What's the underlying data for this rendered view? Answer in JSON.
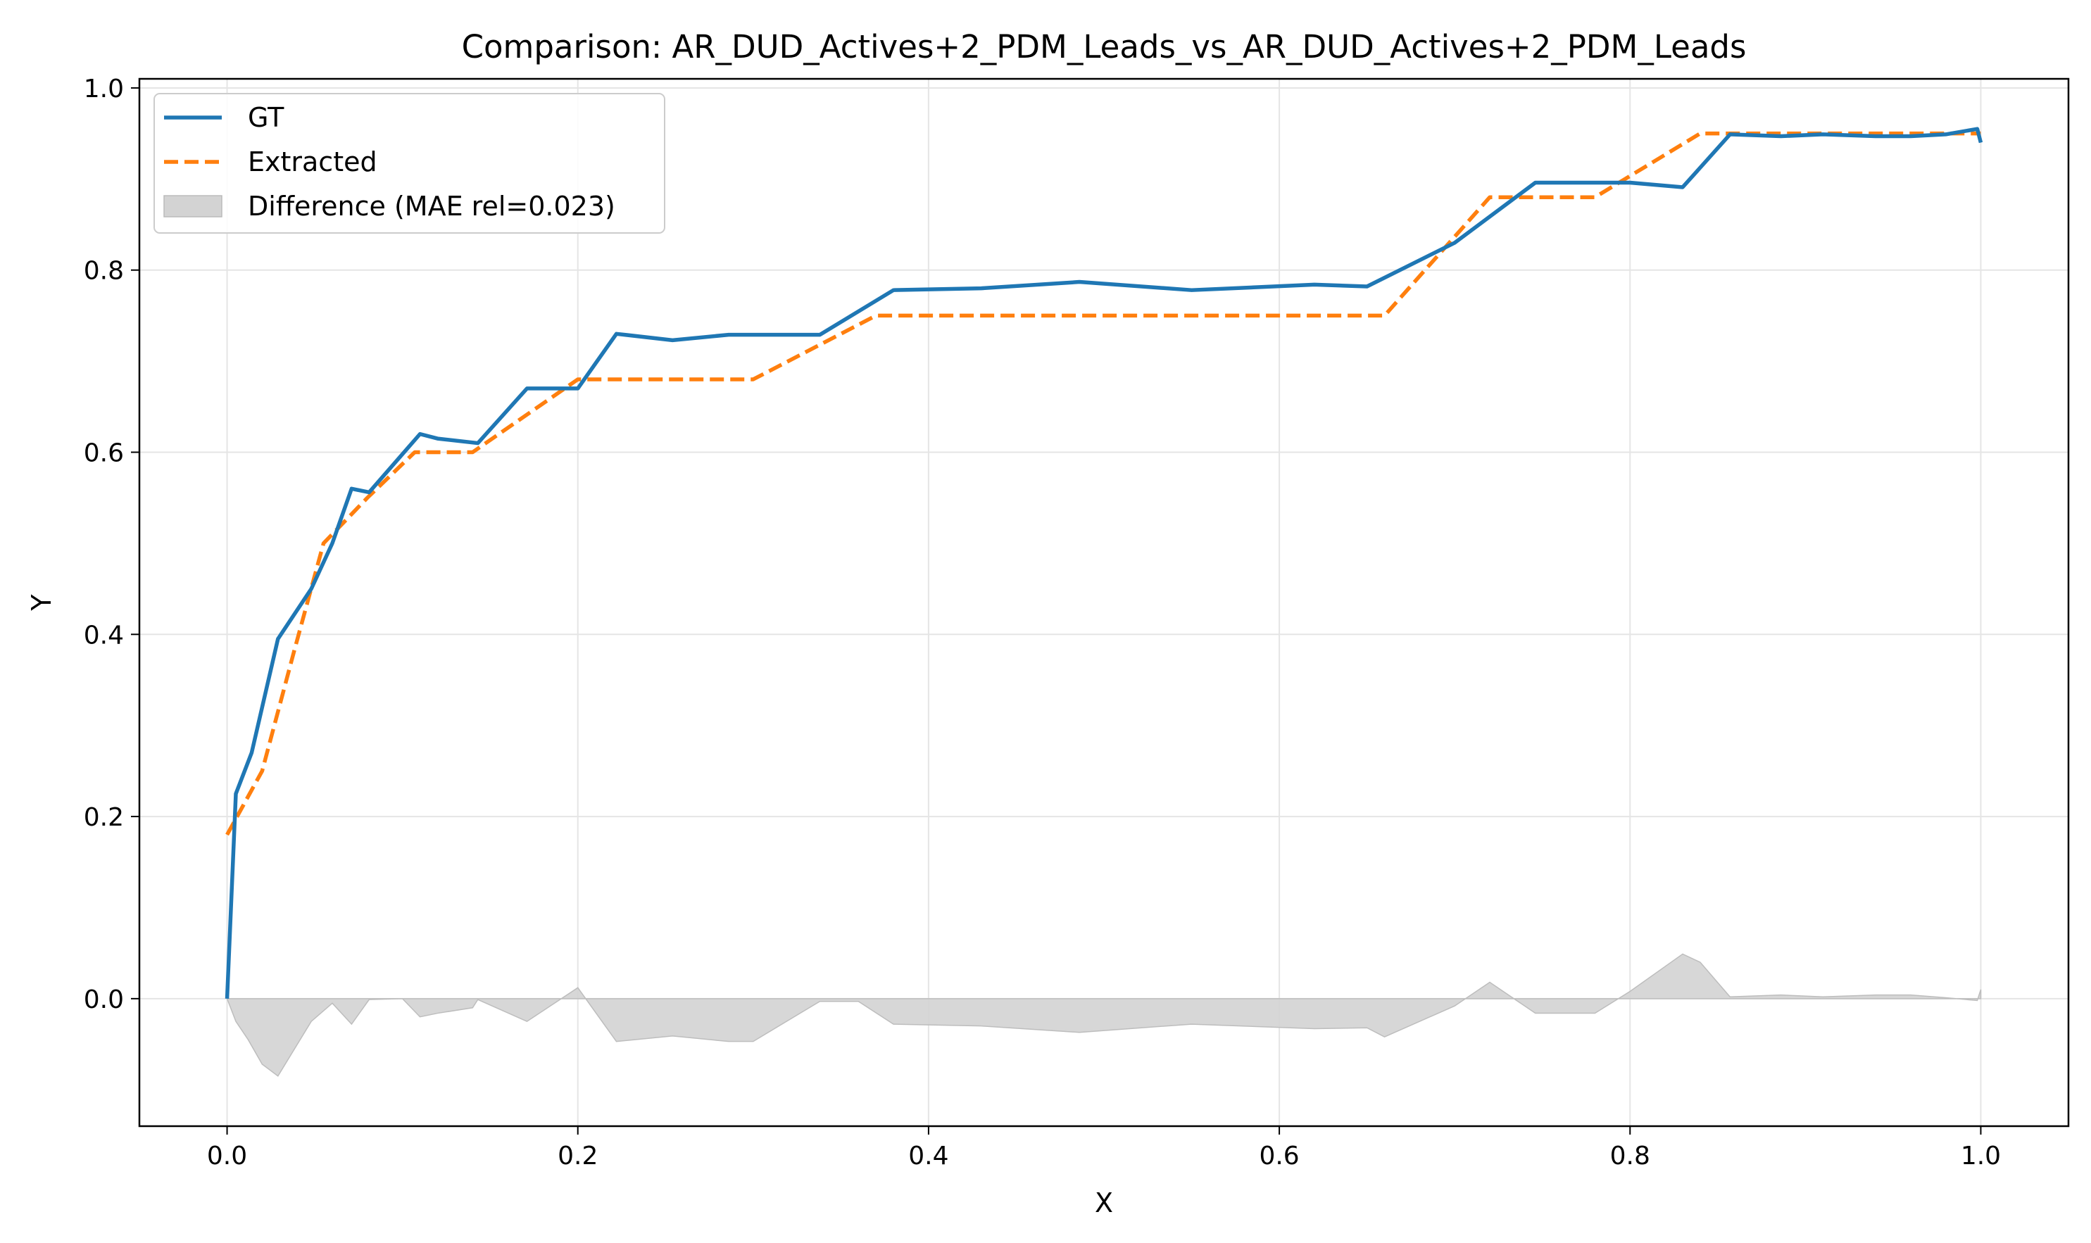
{
  "chart_data": {
    "type": "line",
    "title": "Comparison: AR_DUD_Actives+2_PDM_Leads_vs_AR_DUD_Actives+2_PDM_Leads",
    "xlabel": "X",
    "ylabel": "Y",
    "xlim": [
      -0.05,
      1.05
    ],
    "ylim": [
      -0.14,
      1.01
    ],
    "x_ticks": [
      0.0,
      0.2,
      0.4,
      0.6,
      0.8,
      1.0
    ],
    "x_tick_labels": [
      "0.0",
      "0.2",
      "0.4",
      "0.6",
      "0.8",
      "1.0"
    ],
    "y_ticks": [
      0.0,
      0.2,
      0.4,
      0.6,
      0.8,
      1.0
    ],
    "y_tick_labels": [
      "0.0",
      "0.2",
      "0.4",
      "0.6",
      "0.8",
      "1.0"
    ],
    "grid": true,
    "legend": {
      "placement": "top-left"
    },
    "colors": {
      "gt": "#1f77b4",
      "extracted": "#ff7f0e",
      "difference": "#d3d3d3"
    },
    "series": [
      {
        "name": "GT",
        "style": "solid",
        "x": [
          0.0,
          0.005,
          0.014,
          0.029,
          0.048,
          0.06,
          0.071,
          0.081,
          0.11,
          0.12,
          0.143,
          0.171,
          0.2,
          0.222,
          0.254,
          0.286,
          0.3,
          0.338,
          0.38,
          0.43,
          0.486,
          0.55,
          0.62,
          0.65,
          0.7,
          0.746,
          0.78,
          0.8,
          0.83,
          0.857,
          0.886,
          0.91,
          0.94,
          0.96,
          0.98,
          0.998,
          1.0
        ],
        "y": [
          0.0,
          0.225,
          0.27,
          0.395,
          0.45,
          0.5,
          0.56,
          0.556,
          0.62,
          0.615,
          0.61,
          0.67,
          0.67,
          0.73,
          0.723,
          0.729,
          0.729,
          0.729,
          0.778,
          0.78,
          0.787,
          0.778,
          0.784,
          0.782,
          0.83,
          0.896,
          0.896,
          0.896,
          0.891,
          0.949,
          0.947,
          0.949,
          0.947,
          0.947,
          0.949,
          0.955,
          0.94
        ]
      },
      {
        "name": "Extracted",
        "style": "dashed",
        "x": [
          0.0,
          0.02,
          0.038,
          0.055,
          0.08,
          0.107,
          0.14,
          0.2,
          0.3,
          0.37,
          0.66,
          0.72,
          0.78,
          0.84,
          1.0
        ],
        "y": [
          0.18,
          0.25,
          0.38,
          0.5,
          0.55,
          0.6,
          0.6,
          0.68,
          0.68,
          0.75,
          0.75,
          0.88,
          0.88,
          0.95,
          0.95
        ]
      },
      {
        "name": "Difference (MAE rel=0.023)",
        "style": "fill",
        "x": [
          0.0,
          0.005,
          0.012,
          0.02,
          0.029,
          0.048,
          0.06,
          0.071,
          0.081,
          0.1,
          0.11,
          0.12,
          0.14,
          0.143,
          0.171,
          0.2,
          0.222,
          0.254,
          0.286,
          0.3,
          0.338,
          0.36,
          0.38,
          0.43,
          0.486,
          0.55,
          0.62,
          0.65,
          0.66,
          0.7,
          0.72,
          0.746,
          0.78,
          0.8,
          0.83,
          0.84,
          0.857,
          0.886,
          0.91,
          0.94,
          0.96,
          0.98,
          0.998,
          1.0
        ],
        "y": [
          0.0,
          -0.025,
          -0.045,
          -0.072,
          -0.085,
          -0.025,
          -0.005,
          -0.028,
          -0.001,
          0.0,
          -0.02,
          -0.016,
          -0.01,
          -0.001,
          -0.025,
          0.012,
          -0.047,
          -0.041,
          -0.047,
          -0.047,
          -0.003,
          -0.003,
          -0.028,
          -0.03,
          -0.037,
          -0.028,
          -0.033,
          -0.032,
          -0.042,
          -0.008,
          0.018,
          -0.016,
          -0.016,
          0.008,
          0.049,
          0.04,
          0.002,
          0.004,
          0.002,
          0.004,
          0.004,
          0.001,
          -0.002,
          0.01
        ]
      }
    ]
  }
}
